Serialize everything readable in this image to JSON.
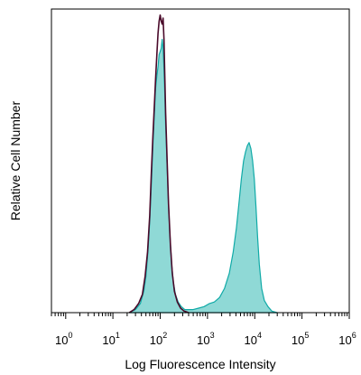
{
  "chart_data": {
    "type": "area",
    "xlabel": "Log Fluorescence Intensity",
    "ylabel": "Relative Cell Number",
    "xscale": "log",
    "xlim": [
      0.5,
      1000000
    ],
    "ylim": [
      0,
      1.0
    ],
    "grid": false,
    "legend": "none",
    "tick_labels": [
      {
        "value": 1,
        "base": "10",
        "exp": "0"
      },
      {
        "value": 10,
        "base": "10",
        "exp": "1"
      },
      {
        "value": 100,
        "base": "10",
        "exp": "2"
      },
      {
        "value": 1000,
        "base": "10",
        "exp": "3"
      },
      {
        "value": 10000,
        "base": "10",
        "exp": "4"
      },
      {
        "value": 100000,
        "base": "10",
        "exp": "5"
      },
      {
        "value": 1000000,
        "base": "10",
        "exp": "6"
      }
    ],
    "series": [
      {
        "style": "filled",
        "color": "#8fd9d6",
        "stroke": "#10aaa7",
        "x": [
          22,
          30,
          38,
          45,
          50,
          55,
          60,
          65,
          70,
          75,
          80,
          85,
          90,
          95,
          100,
          105,
          110,
          115,
          120,
          125,
          130,
          140,
          150,
          160,
          175,
          190,
          210,
          240,
          280,
          330,
          400,
          500,
          650,
          850,
          1100,
          1400,
          1800,
          2300,
          2900,
          3500,
          4100,
          4700,
          5200,
          5800,
          6400,
          7000,
          7600,
          8300,
          9000,
          9800,
          10600,
          11500,
          12500,
          14000,
          16000,
          19000,
          23000,
          30000
        ],
        "y": [
          0.0,
          0.01,
          0.03,
          0.07,
          0.12,
          0.2,
          0.3,
          0.42,
          0.55,
          0.65,
          0.74,
          0.78,
          0.81,
          0.85,
          0.86,
          0.87,
          0.9,
          0.87,
          0.8,
          0.72,
          0.62,
          0.48,
          0.36,
          0.26,
          0.16,
          0.1,
          0.06,
          0.035,
          0.02,
          0.01,
          0.01,
          0.01,
          0.015,
          0.02,
          0.03,
          0.035,
          0.05,
          0.08,
          0.13,
          0.2,
          0.28,
          0.37,
          0.44,
          0.5,
          0.53,
          0.55,
          0.56,
          0.54,
          0.5,
          0.44,
          0.35,
          0.25,
          0.16,
          0.08,
          0.04,
          0.02,
          0.005,
          0.0
        ]
      },
      {
        "style": "line",
        "color": "#4a0a2a",
        "x": [
          22,
          28,
          35,
          42,
          48,
          54,
          60,
          65,
          70,
          75,
          80,
          85,
          90,
          95,
          100,
          105,
          110,
          115,
          120,
          125,
          130,
          140,
          150,
          165,
          180,
          200,
          230,
          270,
          320,
          400
        ],
        "y": [
          0.0,
          0.01,
          0.03,
          0.06,
          0.12,
          0.2,
          0.32,
          0.46,
          0.58,
          0.68,
          0.77,
          0.85,
          0.92,
          0.96,
          0.98,
          0.96,
          0.95,
          0.97,
          0.9,
          0.78,
          0.66,
          0.5,
          0.36,
          0.22,
          0.13,
          0.07,
          0.035,
          0.015,
          0.005,
          0.0
        ]
      }
    ],
    "colors": {
      "axis": "#000000",
      "fill": "#8fd9d6",
      "fill_stroke": "#10aaa7",
      "overlay": "#4a0a2a"
    }
  }
}
